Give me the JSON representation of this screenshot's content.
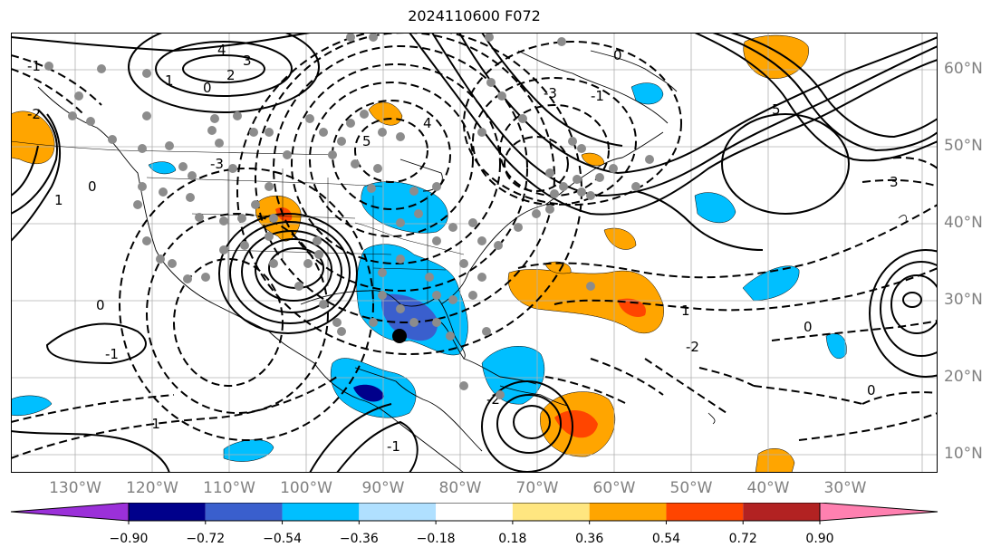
{
  "title": "2024110600 F072",
  "lat_labels": [
    "60°N",
    "50°N",
    "40°N",
    "30°N",
    "20°N",
    "10°N"
  ],
  "lon_labels": [
    "130°W",
    "120°W",
    "110°W",
    "100°W",
    "90°W",
    "80°W",
    "70°W",
    "60°W",
    "50°W",
    "40°W",
    "30°W"
  ],
  "contour_labels": [
    "4",
    "3",
    "2",
    "0",
    "1",
    "-1",
    "-2",
    "-3",
    "0",
    "1",
    "5",
    "4",
    "0",
    "-3",
    "-1",
    "0",
    "-1",
    "0",
    "1",
    "-2",
    "-1",
    "0",
    "5",
    "3",
    "-2",
    "-1"
  ],
  "marker": {
    "lon": -90.3,
    "lat": 25.5
  },
  "colorbar": {
    "ticks": [
      "−0.90",
      "−0.72",
      "−0.54",
      "−0.36",
      "−0.18",
      "0.18",
      "0.36",
      "0.54",
      "0.72",
      "0.90"
    ],
    "colors": [
      "#9b30d9",
      "#00008b",
      "#3a5fcd",
      "#00bfff",
      "#b0e0ff",
      "#ffffff",
      "#ffe680",
      "#ffa500",
      "#ff4500",
      "#b22222",
      "#ff80b0"
    ]
  }
}
